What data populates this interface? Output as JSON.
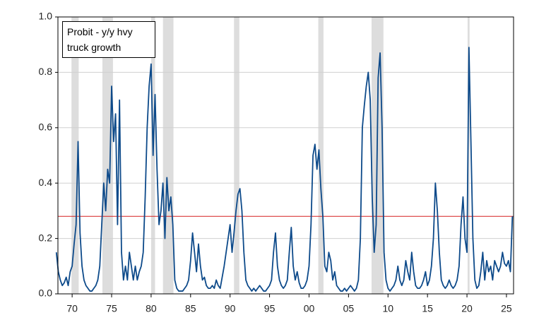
{
  "chart_data": {
    "type": "line",
    "series": [
      {
        "name": "Probit - y/y hvy truck growth",
        "color": "#0d4a8a",
        "values": [
          0.15,
          0.08,
          0.05,
          0.03,
          0.04,
          0.06,
          0.03,
          0.08,
          0.1,
          0.18,
          0.25,
          0.55,
          0.22,
          0.1,
          0.05,
          0.03,
          0.02,
          0.01,
          0.01,
          0.02,
          0.03,
          0.05,
          0.1,
          0.25,
          0.4,
          0.3,
          0.45,
          0.4,
          0.75,
          0.55,
          0.65,
          0.25,
          0.7,
          0.15,
          0.05,
          0.1,
          0.05,
          0.15,
          0.1,
          0.05,
          0.1,
          0.05,
          0.08,
          0.1,
          0.15,
          0.35,
          0.6,
          0.75,
          0.83,
          0.5,
          0.72,
          0.45,
          0.25,
          0.3,
          0.4,
          0.2,
          0.42,
          0.3,
          0.35,
          0.25,
          0.05,
          0.02,
          0.01,
          0.01,
          0.01,
          0.02,
          0.03,
          0.05,
          0.12,
          0.22,
          0.15,
          0.08,
          0.18,
          0.1,
          0.05,
          0.06,
          0.03,
          0.02,
          0.02,
          0.03,
          0.02,
          0.05,
          0.03,
          0.02,
          0.06,
          0.1,
          0.15,
          0.2,
          0.25,
          0.15,
          0.22,
          0.3,
          0.36,
          0.38,
          0.3,
          0.15,
          0.05,
          0.03,
          0.02,
          0.01,
          0.02,
          0.01,
          0.02,
          0.03,
          0.02,
          0.01,
          0.01,
          0.02,
          0.03,
          0.05,
          0.15,
          0.22,
          0.1,
          0.05,
          0.03,
          0.02,
          0.03,
          0.05,
          0.15,
          0.24,
          0.1,
          0.05,
          0.08,
          0.04,
          0.02,
          0.02,
          0.03,
          0.05,
          0.1,
          0.25,
          0.5,
          0.54,
          0.45,
          0.52,
          0.38,
          0.28,
          0.1,
          0.08,
          0.15,
          0.12,
          0.05,
          0.08,
          0.03,
          0.02,
          0.01,
          0.01,
          0.02,
          0.01,
          0.02,
          0.03,
          0.02,
          0.01,
          0.02,
          0.05,
          0.2,
          0.6,
          0.68,
          0.75,
          0.8,
          0.7,
          0.35,
          0.15,
          0.25,
          0.78,
          0.87,
          0.6,
          0.15,
          0.05,
          0.02,
          0.01,
          0.02,
          0.03,
          0.05,
          0.1,
          0.05,
          0.03,
          0.05,
          0.12,
          0.08,
          0.05,
          0.15,
          0.08,
          0.03,
          0.02,
          0.02,
          0.03,
          0.05,
          0.08,
          0.03,
          0.05,
          0.1,
          0.2,
          0.4,
          0.3,
          0.15,
          0.05,
          0.03,
          0.02,
          0.03,
          0.05,
          0.03,
          0.02,
          0.03,
          0.05,
          0.1,
          0.25,
          0.35,
          0.2,
          0.15,
          0.89,
          0.55,
          0.2,
          0.05,
          0.02,
          0.03,
          0.08,
          0.15,
          0.05,
          0.12,
          0.08,
          0.1,
          0.05,
          0.12,
          0.1,
          0.08,
          0.1,
          0.15,
          0.11,
          0.1,
          0.12,
          0.08,
          0.28
        ]
      }
    ],
    "x": [
      1968,
      1968.25,
      1968.5,
      1968.75,
      1969,
      1969.25,
      1969.5,
      1969.75,
      1970,
      1970.25,
      1970.5,
      1970.75,
      1971,
      1971.25,
      1971.5,
      1971.75,
      1972,
      1972.25,
      1972.5,
      1972.75,
      1973,
      1973.25,
      1973.5,
      1973.75,
      1974,
      1974.25,
      1974.5,
      1974.75,
      1975,
      1975.25,
      1975.5,
      1975.75,
      1976,
      1976.25,
      1976.5,
      1976.75,
      1977,
      1977.25,
      1977.5,
      1977.75,
      1978,
      1978.25,
      1978.5,
      1978.75,
      1979,
      1979.25,
      1979.5,
      1979.75,
      1980,
      1980.25,
      1980.5,
      1980.75,
      1981,
      1981.25,
      1981.5,
      1981.75,
      1982,
      1982.25,
      1982.5,
      1982.75,
      1983,
      1983.25,
      1983.5,
      1983.75,
      1984,
      1984.25,
      1984.5,
      1984.75,
      1985,
      1985.25,
      1985.5,
      1985.75,
      1986,
      1986.25,
      1986.5,
      1986.75,
      1987,
      1987.25,
      1987.5,
      1987.75,
      1988,
      1988.25,
      1988.5,
      1988.75,
      1989,
      1989.25,
      1989.5,
      1989.75,
      1990,
      1990.25,
      1990.5,
      1990.75,
      1991,
      1991.25,
      1991.5,
      1991.75,
      1992,
      1992.25,
      1992.5,
      1992.75,
      1993,
      1993.25,
      1993.5,
      1993.75,
      1994,
      1994.25,
      1994.5,
      1994.75,
      1995,
      1995.25,
      1995.5,
      1995.75,
      1996,
      1996.25,
      1996.5,
      1996.75,
      1997,
      1997.25,
      1997.5,
      1997.75,
      1998,
      1998.25,
      1998.5,
      1998.75,
      1999,
      1999.25,
      1999.5,
      1999.75,
      2000,
      2000.25,
      2000.5,
      2000.75,
      2001,
      2001.25,
      2001.5,
      2001.75,
      2002,
      2002.25,
      2002.5,
      2002.75,
      2003,
      2003.25,
      2003.5,
      2003.75,
      2004,
      2004.25,
      2004.5,
      2004.75,
      2005,
      2005.25,
      2005.5,
      2005.75,
      2006,
      2006.25,
      2006.5,
      2006.75,
      2007,
      2007.25,
      2007.5,
      2007.75,
      2008,
      2008.25,
      2008.5,
      2008.75,
      2009,
      2009.25,
      2009.5,
      2009.75,
      2010,
      2010.25,
      2010.5,
      2010.75,
      2011,
      2011.25,
      2011.5,
      2011.75,
      2012,
      2012.25,
      2012.5,
      2012.75,
      2013,
      2013.25,
      2013.5,
      2013.75,
      2014,
      2014.25,
      2014.5,
      2014.75,
      2015,
      2015.25,
      2015.5,
      2015.75,
      2016,
      2016.25,
      2016.5,
      2016.75,
      2017,
      2017.25,
      2017.5,
      2017.75,
      2018,
      2018.25,
      2018.5,
      2018.75,
      2019,
      2019.25,
      2019.5,
      2019.75,
      2020,
      2020.25,
      2020.5,
      2020.75,
      2021,
      2021.25,
      2021.5,
      2021.75,
      2022,
      2022.25,
      2022.5,
      2022.75,
      2023,
      2023.25,
      2023.5,
      2023.75,
      2024,
      2024.25,
      2024.5,
      2024.75,
      2025,
      2025.25,
      2025.5,
      2025.75
    ],
    "shaded_periods": [
      [
        1969.92,
        1970.83
      ],
      [
        1973.83,
        1975.17
      ],
      [
        1980.0,
        1980.5
      ],
      [
        1981.5,
        1982.83
      ],
      [
        1990.5,
        1991.17
      ],
      [
        2001.17,
        2001.83
      ],
      [
        2007.92,
        2009.42
      ],
      [
        2020.08,
        2020.33
      ]
    ],
    "shade_color": "#dddddd",
    "hline": 0.28,
    "hline_color": "#d62020",
    "xlim": [
      1968.2,
      2025.9
    ],
    "xticks": [
      {
        "value": 1970,
        "label": "70"
      },
      {
        "value": 1975,
        "label": "75"
      },
      {
        "value": 1980,
        "label": "80"
      },
      {
        "value": 1985,
        "label": "85"
      },
      {
        "value": 1990,
        "label": "90"
      },
      {
        "value": 1995,
        "label": "95"
      },
      {
        "value": 2000,
        "label": "00"
      },
      {
        "value": 2005,
        "label": "05"
      },
      {
        "value": 2010,
        "label": "10"
      },
      {
        "value": 2015,
        "label": "15"
      },
      {
        "value": 2020,
        "label": "20"
      },
      {
        "value": 2025,
        "label": "25"
      }
    ],
    "ylim": [
      0,
      1
    ],
    "yticks": [
      {
        "value": 0,
        "label": "0.0"
      },
      0.2,
      0.4,
      0.6,
      0.8,
      {
        "value": 1,
        "label": "1.0"
      }
    ],
    "grid": true
  }
}
